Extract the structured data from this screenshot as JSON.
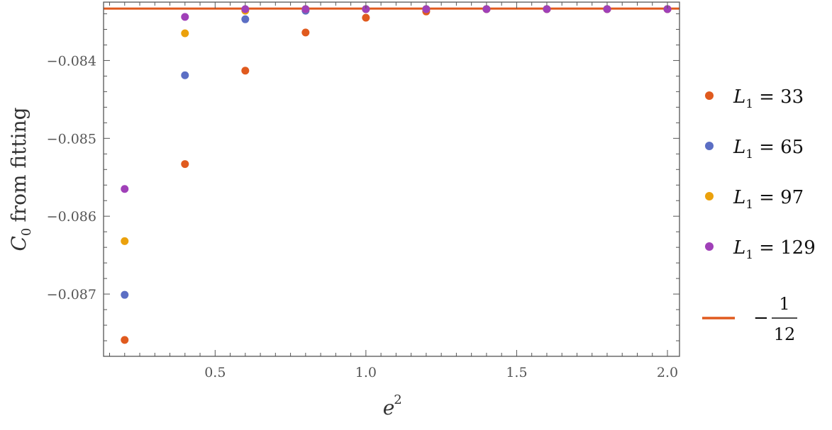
{
  "chart_data": {
    "type": "scatter",
    "xlabel": "e",
    "xlabel_superscript": "2",
    "ylabel_symbol": "C",
    "ylabel_subscript": "0",
    "ylabel_text": "from fitting",
    "xlim": [
      0.13,
      2.04
    ],
    "ylim": [
      -0.0878,
      -0.08325
    ],
    "xticks": [
      0.5,
      1.0,
      1.5,
      2.0
    ],
    "xtick_labels": [
      "0.5",
      "1.0",
      "1.5",
      "2.0"
    ],
    "yticks": [
      -0.084,
      -0.085,
      -0.086,
      -0.087
    ],
    "ytick_labels": [
      "−0.084",
      "−0.085",
      "−0.086",
      "−0.087"
    ],
    "grid": false,
    "legend_position": "right",
    "x": [
      0.2,
      0.4,
      0.6,
      0.8,
      1.0,
      1.2,
      1.4,
      1.6,
      1.8,
      2.0
    ],
    "series": [
      {
        "name": "L1 = 33",
        "label_symbol": "L",
        "label_subscript": "1",
        "label_value": "= 33",
        "color": "#e05a1e",
        "values": [
          -0.08759,
          -0.08533,
          -0.08413,
          -0.08364,
          -0.08345,
          -0.08337,
          -0.08334,
          -0.08334,
          -0.08334,
          -0.08334
        ]
      },
      {
        "name": "L1 = 65",
        "label_symbol": "L",
        "label_subscript": "1",
        "label_value": "= 65",
        "color": "#5b6ec4",
        "values": [
          -0.08701,
          -0.08419,
          -0.08347,
          -0.08336,
          -0.08334,
          -0.08334,
          -0.08334,
          -0.08334,
          -0.08334,
          -0.08334
        ]
      },
      {
        "name": "L1 = 97",
        "label_symbol": "L",
        "label_subscript": "1",
        "label_value": "= 97",
        "color": "#eba10c",
        "values": [
          -0.08632,
          -0.08365,
          -0.08336,
          -0.08334,
          -0.08334,
          -0.08334,
          -0.08334,
          -0.08334,
          -0.08334,
          -0.08334
        ]
      },
      {
        "name": "L1 = 129",
        "label_symbol": "L",
        "label_subscript": "1",
        "label_value": "= 129",
        "color": "#a040b8",
        "values": [
          -0.08565,
          -0.08344,
          -0.08334,
          -0.08334,
          -0.08334,
          -0.08334,
          -0.08334,
          -0.08334,
          -0.08334,
          -0.08334
        ]
      }
    ],
    "reference_line": {
      "value": -0.08333333,
      "color": "#e05a1e",
      "label_sign": "−",
      "label_numerator": "1",
      "label_denominator": "12"
    }
  }
}
